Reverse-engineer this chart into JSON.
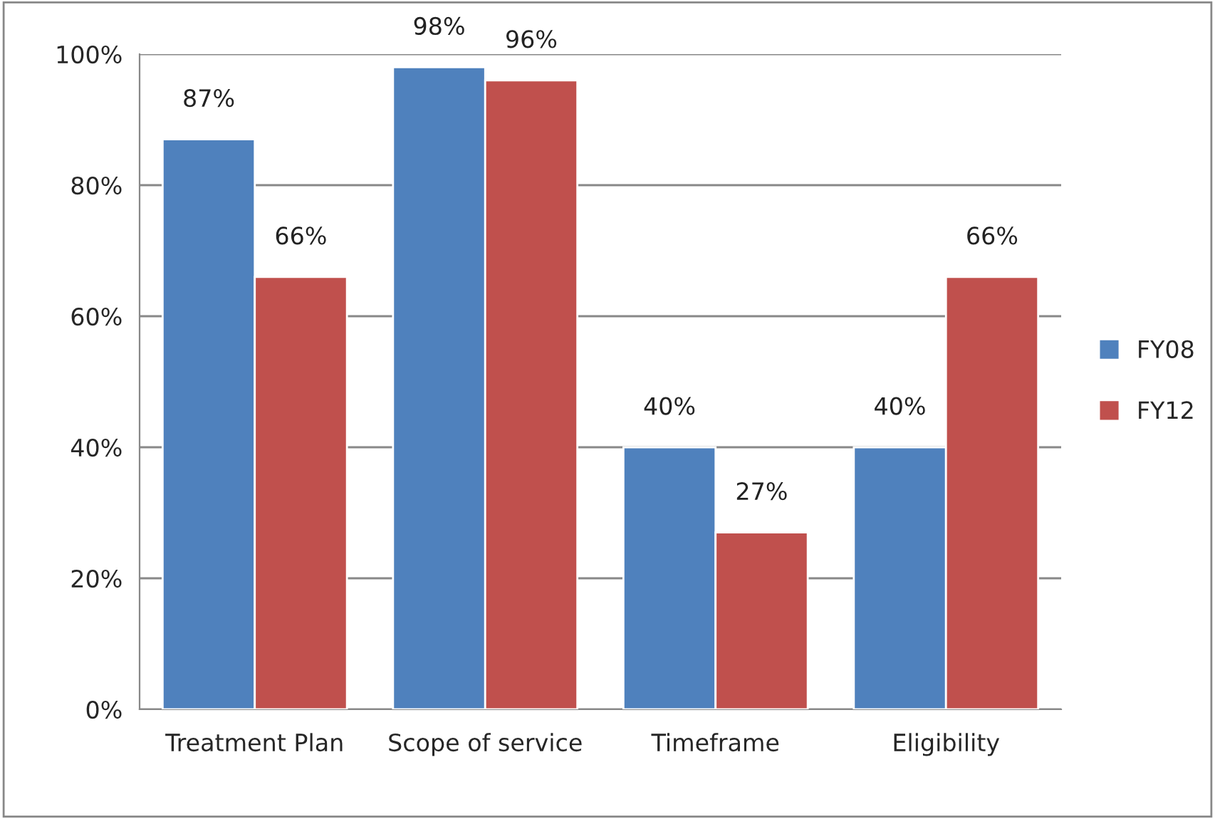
{
  "chart_data": {
    "type": "bar",
    "categories": [
      "Treatment Plan",
      "Scope of service",
      "Timeframe",
      "Eligibility"
    ],
    "series": [
      {
        "name": "FY08",
        "color": "#4f81bd",
        "values": [
          87,
          98,
          40,
          40
        ],
        "value_labels": [
          "87%",
          "98%",
          "40%",
          "40%"
        ]
      },
      {
        "name": "FY12",
        "color": "#c0504d",
        "values": [
          66,
          96,
          27,
          66
        ],
        "value_labels": [
          "66%",
          "96%",
          "27%",
          "66%"
        ]
      }
    ],
    "ylim": [
      0,
      100
    ],
    "yticks": [
      {
        "value": 0,
        "label": "0%"
      },
      {
        "value": 20,
        "label": "20%"
      },
      {
        "value": 40,
        "label": "40%"
      },
      {
        "value": 60,
        "label": "60%"
      },
      {
        "value": 80,
        "label": "80%"
      },
      {
        "value": 100,
        "label": "100%"
      }
    ],
    "grid": "y",
    "legend": "right"
  }
}
